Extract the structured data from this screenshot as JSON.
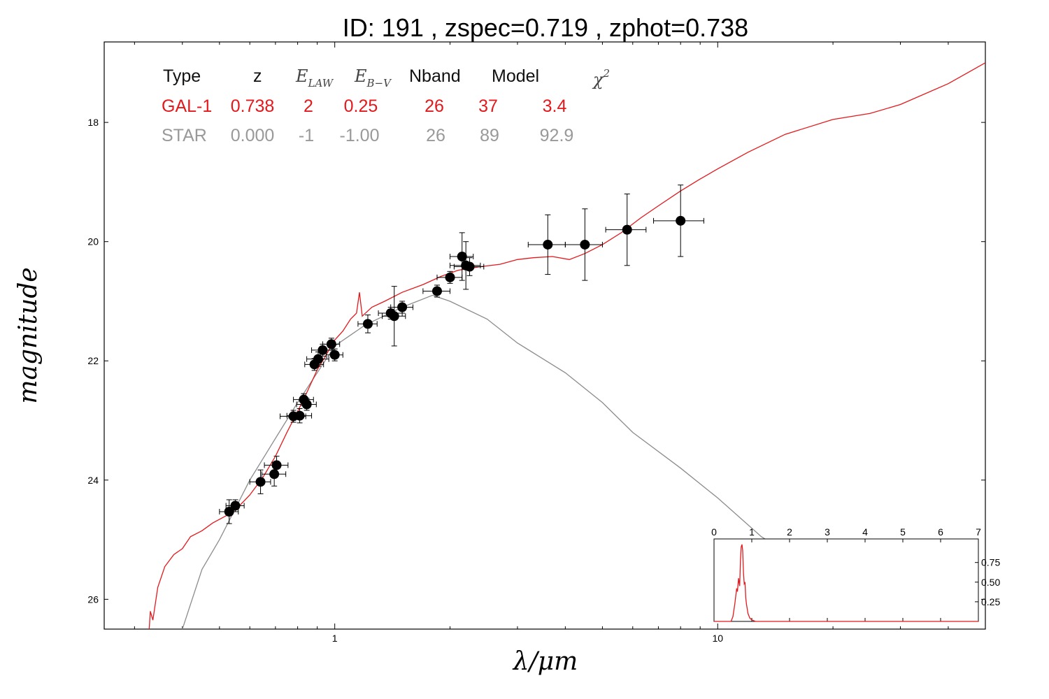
{
  "title": "ID:  191   , zspec=0.719 , zphot=0.738",
  "colors": {
    "galaxy": "#e3191c",
    "star": "#8c8c8c",
    "points": "#000000"
  },
  "chart_data": {
    "type": "scatter",
    "xlabel": "λ/μm",
    "ylabel": "magnitude",
    "xscale": "log",
    "xlim": [
      0.25,
      50
    ],
    "ylim": [
      26.5,
      16.65
    ],
    "y_inverted": true,
    "x_ticks": [
      "1",
      "10"
    ],
    "y_ticks": [
      "18",
      "20",
      "22",
      "24",
      "26"
    ],
    "table": {
      "headers": {
        "type": "Type",
        "z": "z",
        "elaw_main": "E",
        "elaw_sub": "LAW",
        "ebv_main": "E",
        "ebv_sub": "B−V",
        "nband": "Nband",
        "model": "Model",
        "chi_main": "χ",
        "chi_sup": "2"
      },
      "rows": [
        {
          "type": "GAL-1",
          "z": "0.738",
          "elaw": "2",
          "ebv": "0.25",
          "nband": "26",
          "model": "37",
          "chi2": "3.4",
          "color": "#e3191c"
        },
        {
          "type": "STAR",
          "z": "0.000",
          "elaw": "-1",
          "ebv": "-1.00",
          "nband": "26",
          "model": "89",
          "chi2": "92.9",
          "color": "#999999"
        }
      ]
    },
    "series": [
      {
        "role": "galaxy-model",
        "color": "#e3191c",
        "points": [
          [
            0.325,
            26.85
          ],
          [
            0.33,
            26.2
          ],
          [
            0.335,
            26.35
          ],
          [
            0.345,
            25.8
          ],
          [
            0.36,
            25.45
          ],
          [
            0.38,
            25.25
          ],
          [
            0.4,
            25.15
          ],
          [
            0.42,
            24.95
          ],
          [
            0.45,
            24.85
          ],
          [
            0.48,
            24.72
          ],
          [
            0.52,
            24.6
          ],
          [
            0.56,
            24.45
          ],
          [
            0.6,
            24.25
          ],
          [
            0.65,
            23.95
          ],
          [
            0.7,
            23.6
          ],
          [
            0.75,
            23.2
          ],
          [
            0.8,
            22.85
          ],
          [
            0.85,
            22.5
          ],
          [
            0.9,
            22.15
          ],
          [
            0.95,
            21.9
          ],
          [
            1.0,
            21.65
          ],
          [
            1.05,
            21.5
          ],
          [
            1.1,
            21.3
          ],
          [
            1.14,
            21.2
          ],
          [
            1.16,
            20.85
          ],
          [
            1.18,
            21.25
          ],
          [
            1.25,
            21.1
          ],
          [
            1.35,
            21.0
          ],
          [
            1.5,
            20.85
          ],
          [
            1.7,
            20.72
          ],
          [
            1.9,
            20.58
          ],
          [
            2.1,
            20.48
          ],
          [
            2.4,
            20.42
          ],
          [
            2.7,
            20.38
          ],
          [
            3.0,
            20.3
          ],
          [
            3.3,
            20.27
          ],
          [
            3.7,
            20.25
          ],
          [
            4.1,
            20.3
          ],
          [
            4.5,
            20.2
          ],
          [
            5.0,
            20.05
          ],
          [
            5.6,
            19.85
          ],
          [
            6.3,
            19.6
          ],
          [
            7.0,
            19.4
          ],
          [
            8.0,
            19.15
          ],
          [
            9.0,
            18.95
          ],
          [
            10,
            18.78
          ],
          [
            12,
            18.5
          ],
          [
            15,
            18.2
          ],
          [
            20,
            17.95
          ],
          [
            25,
            17.85
          ],
          [
            30,
            17.7
          ],
          [
            40,
            17.35
          ],
          [
            50,
            17.0
          ]
        ]
      },
      {
        "role": "star-model",
        "color": "#8c8c8c",
        "points": [
          [
            0.4,
            26.5
          ],
          [
            0.45,
            25.5
          ],
          [
            0.5,
            25.0
          ],
          [
            0.6,
            24.0
          ],
          [
            0.7,
            23.3
          ],
          [
            0.8,
            22.7
          ],
          [
            0.9,
            22.2
          ],
          [
            1.0,
            21.75
          ],
          [
            1.2,
            21.4
          ],
          [
            1.5,
            21.1
          ],
          [
            1.8,
            20.9
          ],
          [
            2.0,
            21.0
          ],
          [
            2.5,
            21.3
          ],
          [
            3.0,
            21.7
          ],
          [
            4.0,
            22.2
          ],
          [
            5.0,
            22.7
          ],
          [
            6.0,
            23.2
          ],
          [
            8.0,
            23.8
          ],
          [
            10.0,
            24.3
          ],
          [
            13.0,
            24.95
          ],
          [
            16.0,
            25.3
          ],
          [
            17.0,
            25.35
          ]
        ]
      },
      {
        "role": "observed-photometry",
        "color": "#000000",
        "points": [
          {
            "x": 0.53,
            "y": 24.53,
            "xerr": 0.03,
            "yerr": 0.2
          },
          {
            "x": 0.55,
            "y": 24.43,
            "xerr": 0.03,
            "yerr": 0.1
          },
          {
            "x": 0.64,
            "y": 24.03,
            "xerr": 0.04,
            "yerr": 0.2
          },
          {
            "x": 0.695,
            "y": 23.9,
            "xerr": 0.05,
            "yerr": 0.2
          },
          {
            "x": 0.705,
            "y": 23.75,
            "xerr": 0.05,
            "yerr": 0.15
          },
          {
            "x": 0.78,
            "y": 22.93,
            "xerr": 0.06,
            "yerr": 0.1
          },
          {
            "x": 0.81,
            "y": 22.92,
            "xerr": 0.06,
            "yerr": 0.12
          },
          {
            "x": 0.83,
            "y": 22.65,
            "xerr": 0.05,
            "yerr": 0.1
          },
          {
            "x": 0.845,
            "y": 22.73,
            "xerr": 0.05,
            "yerr": 0.1
          },
          {
            "x": 0.885,
            "y": 22.06,
            "xerr": 0.05,
            "yerr": 0.1
          },
          {
            "x": 0.905,
            "y": 21.97,
            "xerr": 0.06,
            "yerr": 0.12
          },
          {
            "x": 0.93,
            "y": 21.82,
            "xerr": 0.06,
            "yerr": 0.1
          },
          {
            "x": 0.98,
            "y": 21.72,
            "xerr": 0.05,
            "yerr": 0.1
          },
          {
            "x": 1.0,
            "y": 21.9,
            "xerr": 0.05,
            "yerr": 0.1
          },
          {
            "x": 1.22,
            "y": 21.38,
            "xerr": 0.07,
            "yerr": 0.15
          },
          {
            "x": 1.4,
            "y": 21.2,
            "xerr": 0.1,
            "yerr": 0.1
          },
          {
            "x": 1.43,
            "y": 21.25,
            "xerr": 0.1,
            "yerr": 0.5
          },
          {
            "x": 1.5,
            "y": 21.1,
            "xerr": 0.1,
            "yerr": 0.1
          },
          {
            "x": 1.85,
            "y": 20.83,
            "xerr": 0.15,
            "yerr": 0.1
          },
          {
            "x": 2.0,
            "y": 20.6,
            "xerr": 0.15,
            "yerr": 0.1
          },
          {
            "x": 2.15,
            "y": 20.25,
            "xerr": 0.15,
            "yerr": 0.4
          },
          {
            "x": 2.2,
            "y": 20.4,
            "xerr": 0.2,
            "yerr": 0.4
          },
          {
            "x": 2.25,
            "y": 20.42,
            "xerr": 0.2,
            "yerr": 0.15
          },
          {
            "x": 3.6,
            "y": 20.05,
            "xerr": 0.4,
            "yerr": 0.5
          },
          {
            "x": 4.5,
            "y": 20.05,
            "xerr": 0.5,
            "yerr": 0.6
          },
          {
            "x": 5.8,
            "y": 19.8,
            "xerr": 0.7,
            "yerr": 0.6
          },
          {
            "x": 8.0,
            "y": 19.65,
            "xerr": 1.2,
            "yerr": 0.6
          }
        ]
      }
    ],
    "inset": {
      "type": "line",
      "color": "#e3191c",
      "xlim": [
        0,
        7
      ],
      "ylim": [
        0,
        1.05
      ],
      "x_ticks": [
        "0",
        "1",
        "2",
        "3",
        "4",
        "5",
        "6",
        "7"
      ],
      "y_ticks": [
        "0.25",
        "0.50",
        "0.75"
      ],
      "points": [
        [
          0,
          0
        ],
        [
          0.45,
          0
        ],
        [
          0.5,
          0.06
        ],
        [
          0.55,
          0.22
        ],
        [
          0.6,
          0.42
        ],
        [
          0.62,
          0.38
        ],
        [
          0.65,
          0.55
        ],
        [
          0.68,
          0.45
        ],
        [
          0.7,
          0.78
        ],
        [
          0.72,
          0.95
        ],
        [
          0.74,
          0.98
        ],
        [
          0.76,
          0.9
        ],
        [
          0.78,
          0.62
        ],
        [
          0.8,
          0.48
        ],
        [
          0.82,
          0.5
        ],
        [
          0.84,
          0.3
        ],
        [
          0.86,
          0.22
        ],
        [
          0.9,
          0.1
        ],
        [
          0.95,
          0.04
        ],
        [
          1.0,
          0.02
        ],
        [
          1.1,
          0
        ],
        [
          7,
          0
        ]
      ]
    }
  }
}
